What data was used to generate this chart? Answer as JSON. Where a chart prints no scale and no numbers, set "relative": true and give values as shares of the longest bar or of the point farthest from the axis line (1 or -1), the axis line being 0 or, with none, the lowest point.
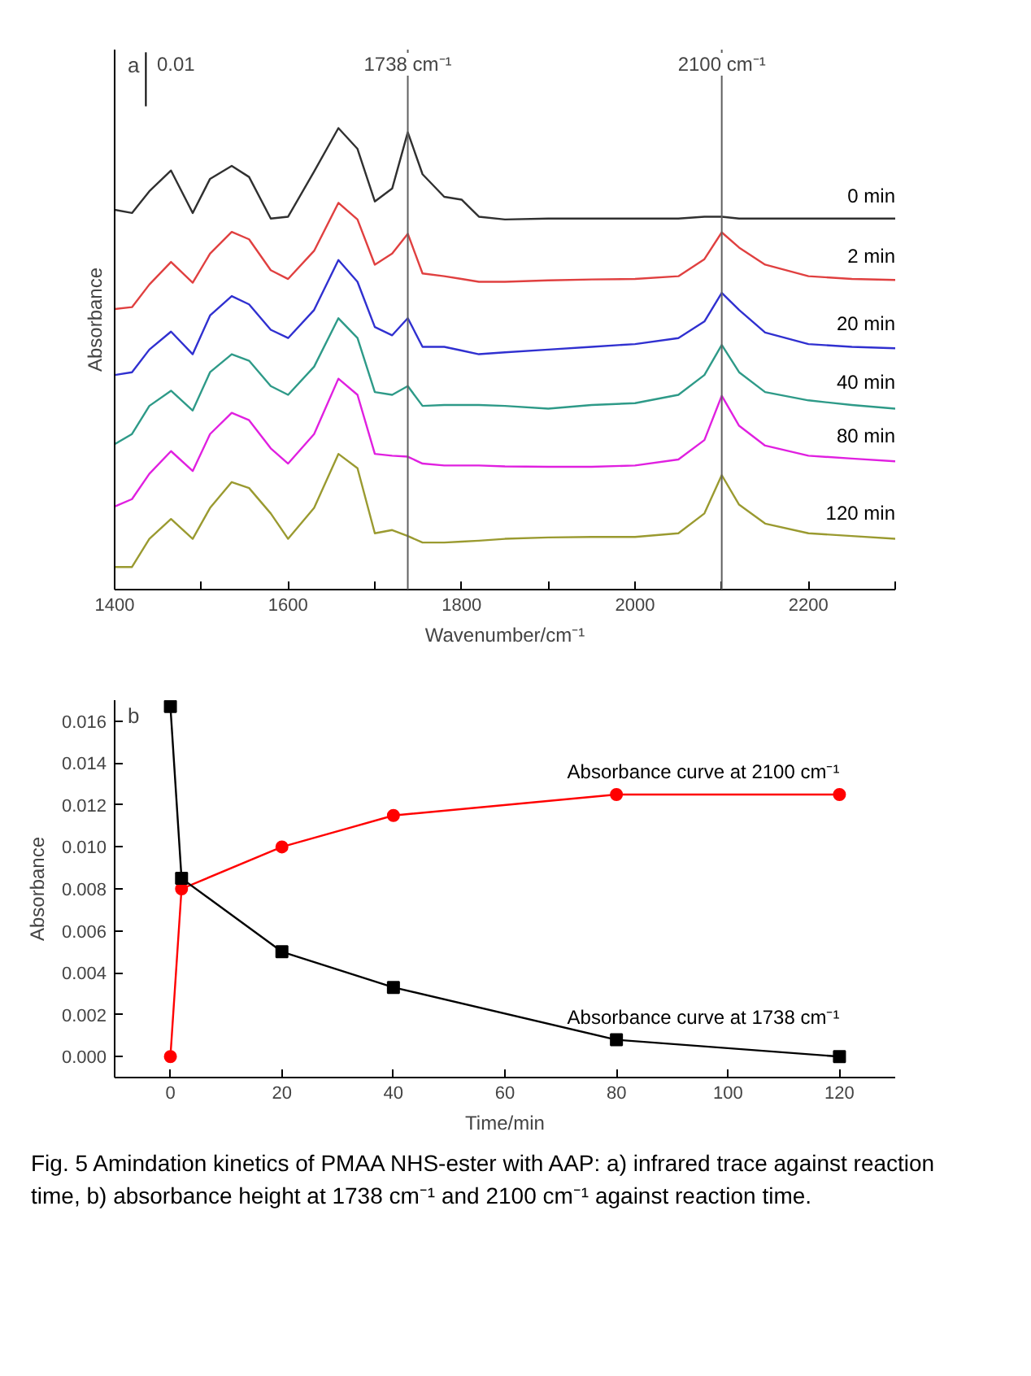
{
  "chart_data": [
    {
      "type": "line",
      "relative": true,
      "xlabel": "Wavenumber/cm⁻¹",
      "ylabel": "Absorbance",
      "xlim": [
        1400,
        2300
      ],
      "xticks": [
        1400,
        {
          "value": 1500,
          "label": null
        },
        1600,
        {
          "value": 1700,
          "label": null
        },
        1800,
        {
          "value": 1900,
          "label": null
        },
        2000,
        {
          "value": 2100,
          "label": null
        },
        2200,
        {
          "value": 2300,
          "label": null
        }
      ],
      "grid": false,
      "marker": "none",
      "line_style": "solid",
      "annotations": [
        "a",
        "0.01"
      ],
      "ref_lines": [
        {
          "axis": "x",
          "value": 1738,
          "label": "1738 cm⁻¹",
          "color": "#606060"
        },
        {
          "axis": "x",
          "value": 2100,
          "label": "2100 cm⁻¹",
          "color": "#606060"
        }
      ],
      "x": [
        1400,
        1420,
        1440,
        1465,
        1490,
        1510,
        1535,
        1555,
        1580,
        1600,
        1630,
        1658,
        1680,
        1700,
        1720,
        1738,
        1755,
        1780,
        1800,
        1820,
        1850,
        1900,
        1950,
        2000,
        2050,
        2080,
        2100,
        2120,
        2150,
        2200,
        2250,
        2300
      ],
      "series": [
        {
          "name": "0 min",
          "color": "#303030",
          "values": [
            0.823,
            0.816,
            0.863,
            0.908,
            0.816,
            0.89,
            0.918,
            0.894,
            0.804,
            0.808,
            0.906,
            1.0,
            0.955,
            0.841,
            0.869,
            0.991,
            0.9,
            0.851,
            0.845,
            0.808,
            0.802,
            0.804,
            0.804,
            0.804,
            0.804,
            0.808,
            0.808,
            0.804,
            0.804,
            0.804,
            0.804,
            0.804
          ]
        },
        {
          "name": "2 min",
          "color": "#e04040",
          "values": [
            0.608,
            0.612,
            0.661,
            0.71,
            0.665,
            0.728,
            0.775,
            0.759,
            0.692,
            0.673,
            0.734,
            0.838,
            0.802,
            0.704,
            0.728,
            0.771,
            0.685,
            0.679,
            0.673,
            0.667,
            0.667,
            0.67,
            0.672,
            0.673,
            0.679,
            0.716,
            0.774,
            0.741,
            0.704,
            0.679,
            0.673,
            0.671
          ]
        },
        {
          "name": "20 min",
          "color": "#3030d0",
          "values": [
            0.465,
            0.471,
            0.52,
            0.559,
            0.51,
            0.594,
            0.636,
            0.618,
            0.563,
            0.545,
            0.606,
            0.714,
            0.667,
            0.569,
            0.551,
            0.588,
            0.526,
            0.526,
            0.518,
            0.51,
            0.514,
            0.52,
            0.526,
            0.532,
            0.545,
            0.581,
            0.643,
            0.606,
            0.557,
            0.532,
            0.526,
            0.523
          ]
        },
        {
          "name": "40 min",
          "color": "#2e9a88",
          "values": [
            0.315,
            0.337,
            0.398,
            0.431,
            0.388,
            0.471,
            0.51,
            0.496,
            0.441,
            0.422,
            0.483,
            0.588,
            0.545,
            0.428,
            0.422,
            0.441,
            0.398,
            0.4,
            0.4,
            0.4,
            0.398,
            0.392,
            0.4,
            0.404,
            0.422,
            0.465,
            0.53,
            0.471,
            0.428,
            0.41,
            0.4,
            0.392
          ]
        },
        {
          "name": "80 min",
          "color": "#e020e0",
          "values": [
            0.18,
            0.196,
            0.251,
            0.3,
            0.257,
            0.337,
            0.383,
            0.367,
            0.306,
            0.273,
            0.337,
            0.457,
            0.422,
            0.294,
            0.29,
            0.288,
            0.273,
            0.269,
            0.269,
            0.269,
            0.267,
            0.266,
            0.266,
            0.269,
            0.282,
            0.324,
            0.42,
            0.355,
            0.312,
            0.29,
            0.284,
            0.278
          ]
        },
        {
          "name": "120 min",
          "color": "#9a9a30",
          "values": [
            0.049,
            0.049,
            0.11,
            0.153,
            0.11,
            0.177,
            0.233,
            0.22,
            0.165,
            0.11,
            0.177,
            0.294,
            0.263,
            0.122,
            0.129,
            0.116,
            0.102,
            0.102,
            0.104,
            0.106,
            0.11,
            0.113,
            0.114,
            0.114,
            0.122,
            0.165,
            0.248,
            0.184,
            0.143,
            0.122,
            0.116,
            0.11
          ]
        }
      ]
    },
    {
      "type": "line",
      "xlabel": "Time/min",
      "ylabel": "Absorbance",
      "xlim": [
        -10,
        130
      ],
      "ylim": [
        -0.001,
        0.017
      ],
      "xticks": [
        0,
        20,
        40,
        60,
        80,
        100,
        120
      ],
      "yticks": [
        {
          "value": 0,
          "label": "0.000"
        },
        {
          "value": 0.002,
          "label": "0.002"
        },
        {
          "value": 0.004,
          "label": "0.004"
        },
        {
          "value": 0.006,
          "label": "0.006"
        },
        {
          "value": 0.008,
          "label": "0.008"
        },
        {
          "value": 0.01,
          "label": "0.010"
        },
        {
          "value": 0.012,
          "label": "0.012"
        },
        {
          "value": 0.014,
          "label": "0.014"
        },
        {
          "value": 0.016,
          "label": "0.016"
        }
      ],
      "grid": false,
      "line_style": "solid",
      "annotations": [
        "b",
        "Fig. 5 Amindation kinetics of PMAA NHS-ester with AAP: a) infrared trace against reaction time, b) absorbance height at 1738 cm⁻¹ and 2100 cm⁻¹ against reaction time."
      ],
      "x": [
        0,
        2,
        20,
        40,
        80,
        120
      ],
      "series": [
        {
          "name": "Absorbance curve at 2100 cm⁻¹",
          "color": "#ff0000",
          "marker": "circle",
          "values": [
            0.0,
            0.008,
            0.01,
            0.0115,
            0.0125,
            0.0125
          ]
        },
        {
          "name": "Absorbance curve at 1738 cm⁻¹",
          "color": "#000000",
          "marker": "square",
          "values": [
            0.0167,
            0.0085,
            0.005,
            0.0033,
            0.0008,
            0.0
          ]
        }
      ]
    }
  ]
}
